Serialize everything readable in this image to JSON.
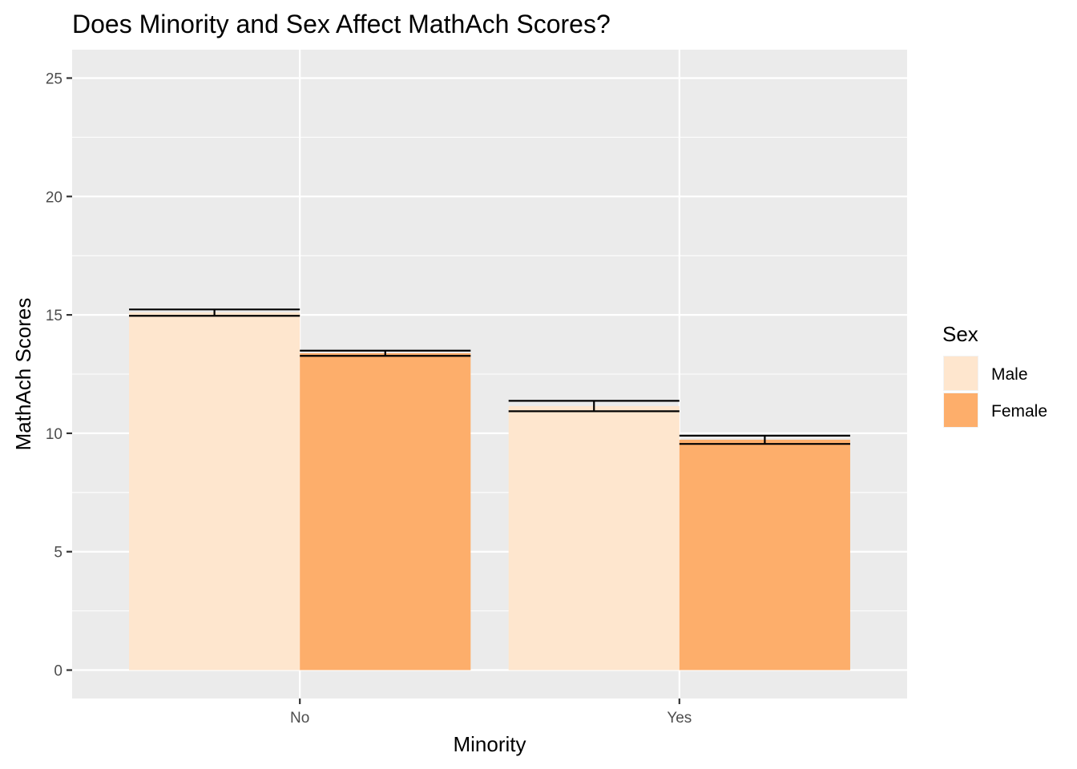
{
  "chart_data": {
    "type": "bar",
    "title": "Does Minority and Sex Affect MathAch Scores?",
    "xlabel": "Minority",
    "ylabel": "MathAch Scores",
    "categories": [
      "No",
      "Yes"
    ],
    "series": [
      {
        "name": "Male",
        "values": [
          15.1,
          11.15
        ],
        "error": [
          [
            14.96,
            15.23
          ],
          [
            10.93,
            11.37
          ]
        ],
        "color": "#FEE6CE"
      },
      {
        "name": "Female",
        "values": [
          13.38,
          9.73
        ],
        "error": [
          [
            13.27,
            13.49
          ],
          [
            9.55,
            9.9
          ]
        ],
        "color": "#FDAE6B"
      }
    ],
    "yticks": [
      0,
      5,
      10,
      15,
      20,
      25
    ],
    "ylim": [
      -1.2,
      26.2
    ],
    "grid": true,
    "panel_background": "#EBEBEB",
    "grid_color": "#FFFFFF",
    "legend": {
      "title": "Sex",
      "position": "right"
    }
  }
}
